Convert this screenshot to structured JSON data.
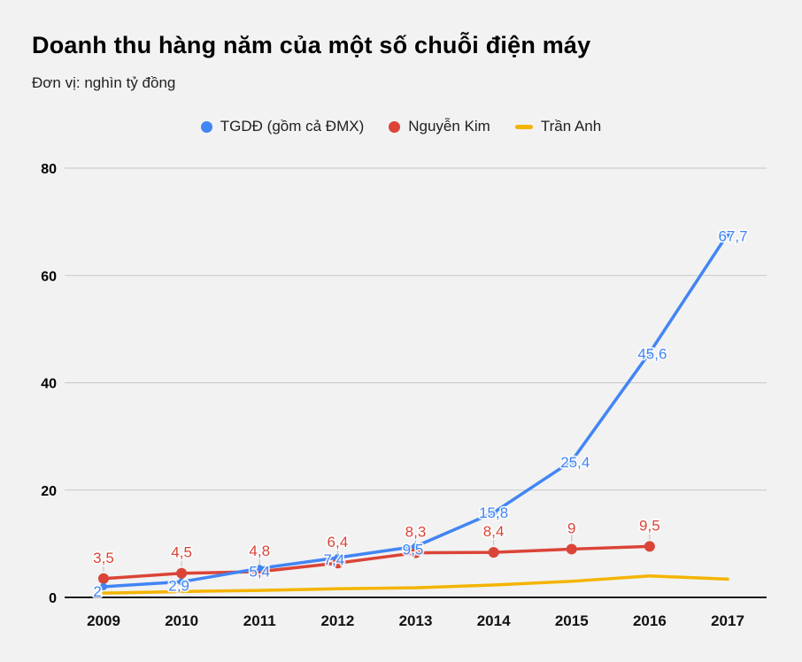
{
  "title": "Doanh thu hàng năm của một số chuỗi điện máy",
  "subtitle": "Đơn vị: nghìn tỷ đồng",
  "legend": [
    {
      "label": "TGDĐ (gồm cả ĐMX)",
      "color": "#4285f4",
      "marker": "circle"
    },
    {
      "label": "Nguyễn Kim",
      "color": "#db4437",
      "marker": "circle"
    },
    {
      "label": "Trần Anh",
      "color": "#f4b400",
      "marker": "line"
    }
  ],
  "chart_data": {
    "type": "line",
    "title": "Doanh thu hàng năm của một số chuỗi điện máy",
    "subtitle_unit": "Đơn vị: nghìn tỷ đồng",
    "categories": [
      "2009",
      "2010",
      "2011",
      "2012",
      "2013",
      "2014",
      "2015",
      "2016",
      "2017"
    ],
    "series": [
      {
        "name": "TGDĐ (gồm cả ĐMX)",
        "color": "#4285f4",
        "values": [
          2,
          2.9,
          5.4,
          7.4,
          9.5,
          15.8,
          25.4,
          45.6,
          67.7
        ],
        "labels": [
          "2",
          "2,9",
          "5,4",
          "7,4",
          "9,5",
          "15,8",
          "25,4",
          "45,6",
          "67,7"
        ],
        "labels_position": "center",
        "has_point_markers": true
      },
      {
        "name": "Nguyễn Kim",
        "color": "#db4437",
        "values": [
          3.5,
          4.5,
          4.8,
          6.4,
          8.3,
          8.4,
          9,
          9.5
        ],
        "labels": [
          "3,5",
          "4,5",
          "4,8",
          "6,4",
          "8,3",
          "8,4",
          "9",
          "9,5"
        ],
        "labels_position": "above",
        "has_point_markers": true
      },
      {
        "name": "Trần Anh",
        "color": "#f4b400",
        "values": [
          0.8,
          1.1,
          1.3,
          1.6,
          1.8,
          2.3,
          3.0,
          4.0,
          3.4
        ],
        "labels": [],
        "labels_position": "none",
        "has_point_markers": false
      }
    ],
    "xlabel": "",
    "ylabel": "",
    "yticks": [
      0,
      20,
      40,
      60,
      80
    ],
    "ylim": [
      0,
      80
    ],
    "grid": true,
    "legend_position": "top",
    "decimal_separator": ","
  },
  "colors": {
    "background": "#f1f2f1",
    "gridline": "#c7c7c7",
    "axis_line": "#1a1a1a",
    "leader_line": "#bdbdbd"
  }
}
